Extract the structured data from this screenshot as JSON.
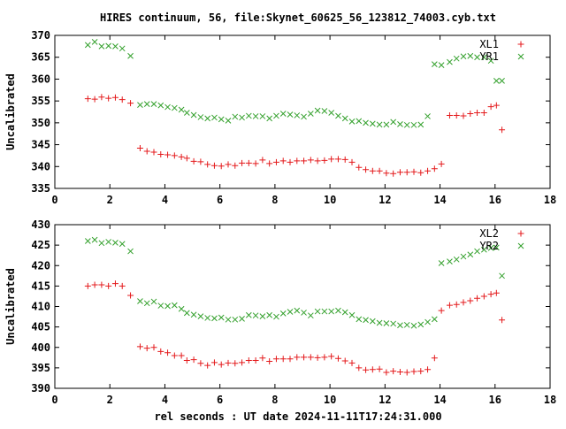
{
  "title": "HIRES continuum, 56, file:Skynet_60625_56_123812_74003.cyb.txt",
  "xlabel": "rel seconds : UT date 2024-11-11T17:24:31.000",
  "colors": {
    "red": "#e41a1c",
    "green": "#33a02c",
    "axis": "#000000"
  },
  "chart_data": [
    {
      "type": "scatter",
      "title": "",
      "xlabel": "",
      "ylabel": "Uncalibrated",
      "xlim": [
        0,
        18
      ],
      "ylim": [
        335,
        370
      ],
      "xticks": [
        "0",
        "2",
        "4",
        "6",
        "8",
        "10",
        "12",
        "14",
        "16",
        "18"
      ],
      "yticks": [
        "335",
        "340",
        "345",
        "350",
        "355",
        "360",
        "365",
        "370"
      ],
      "legend_position": "top-right",
      "series": [
        {
          "name": "XL1",
          "marker": "plus",
          "color": "#e41a1c",
          "x": [
            1.2,
            1.45,
            1.7,
            1.95,
            2.2,
            2.45,
            2.75,
            3.1,
            3.35,
            3.6,
            3.85,
            4.1,
            4.35,
            4.6,
            4.8,
            5.05,
            5.3,
            5.55,
            5.8,
            6.05,
            6.3,
            6.55,
            6.8,
            7.05,
            7.3,
            7.55,
            7.8,
            8.05,
            8.3,
            8.55,
            8.8,
            9.05,
            9.3,
            9.55,
            9.8,
            10.05,
            10.3,
            10.55,
            10.8,
            11.05,
            11.3,
            11.55,
            11.8,
            12.05,
            12.3,
            12.55,
            12.8,
            13.05,
            13.3,
            13.55,
            13.8,
            14.05,
            14.35,
            14.6,
            14.85,
            15.1,
            15.35,
            15.6,
            15.85,
            16.05,
            16.25
          ],
          "y": [
            355.5,
            355.4,
            355.9,
            355.6,
            355.8,
            355.3,
            354.5,
            344.2,
            343.5,
            343.3,
            342.8,
            342.7,
            342.5,
            342.2,
            341.9,
            341.2,
            341.1,
            340.5,
            340.2,
            340.1,
            340.5,
            340.2,
            340.8,
            340.8,
            340.7,
            341.5,
            340.7,
            341.0,
            341.3,
            341.0,
            341.3,
            341.3,
            341.5,
            341.3,
            341.4,
            341.7,
            341.7,
            341.6,
            341.0,
            339.8,
            339.3,
            339.0,
            339.0,
            338.5,
            338.4,
            338.7,
            338.7,
            338.8,
            338.6,
            339.0,
            339.5,
            340.6,
            351.7,
            351.7,
            351.6,
            352.1,
            352.3,
            352.3,
            353.7,
            354.0,
            348.4
          ]
        },
        {
          "name": "YR1",
          "marker": "cross",
          "color": "#33a02c",
          "x": [
            1.2,
            1.45,
            1.7,
            1.95,
            2.2,
            2.45,
            2.75,
            3.1,
            3.35,
            3.6,
            3.85,
            4.1,
            4.35,
            4.6,
            4.8,
            5.05,
            5.3,
            5.55,
            5.8,
            6.05,
            6.3,
            6.55,
            6.8,
            7.05,
            7.3,
            7.55,
            7.8,
            8.05,
            8.3,
            8.55,
            8.8,
            9.05,
            9.3,
            9.55,
            9.8,
            10.05,
            10.3,
            10.55,
            10.8,
            11.05,
            11.3,
            11.55,
            11.8,
            12.05,
            12.3,
            12.55,
            12.8,
            13.05,
            13.3,
            13.55,
            13.8,
            14.05,
            14.35,
            14.6,
            14.85,
            15.1,
            15.35,
            15.6,
            15.85,
            16.05,
            16.25
          ],
          "y": [
            367.8,
            368.5,
            367.5,
            367.6,
            367.5,
            367.0,
            365.3,
            354.1,
            354.3,
            354.3,
            354.0,
            353.6,
            353.4,
            353.0,
            352.3,
            351.8,
            351.3,
            351.0,
            351.2,
            350.8,
            350.5,
            351.4,
            351.2,
            351.6,
            351.5,
            351.5,
            351.0,
            351.6,
            352.1,
            351.9,
            351.7,
            351.4,
            352.1,
            352.8,
            352.7,
            352.3,
            351.6,
            351.0,
            350.3,
            350.4,
            350.0,
            349.8,
            349.6,
            349.6,
            350.2,
            349.7,
            349.5,
            349.5,
            349.6,
            351.5,
            363.4,
            363.2,
            363.9,
            364.7,
            365.2,
            365.3,
            365.0,
            365.0,
            364.2,
            359.6,
            359.6
          ]
        }
      ]
    },
    {
      "type": "scatter",
      "title": "",
      "xlabel": "rel seconds : UT date 2024-11-11T17:24:31.000",
      "ylabel": "Uncalibrated",
      "xlim": [
        0,
        18
      ],
      "ylim": [
        390,
        430
      ],
      "xticks": [
        "0",
        "2",
        "4",
        "6",
        "8",
        "10",
        "12",
        "14",
        "16",
        "18"
      ],
      "yticks": [
        "390",
        "395",
        "400",
        "405",
        "410",
        "415",
        "420",
        "425",
        "430"
      ],
      "legend_position": "top-right",
      "series": [
        {
          "name": "XL2",
          "marker": "plus",
          "color": "#e41a1c",
          "x": [
            1.2,
            1.45,
            1.7,
            1.95,
            2.2,
            2.45,
            2.75,
            3.1,
            3.35,
            3.6,
            3.85,
            4.1,
            4.35,
            4.6,
            4.8,
            5.05,
            5.3,
            5.55,
            5.8,
            6.05,
            6.3,
            6.55,
            6.8,
            7.05,
            7.3,
            7.55,
            7.8,
            8.05,
            8.3,
            8.55,
            8.8,
            9.05,
            9.3,
            9.55,
            9.8,
            10.05,
            10.3,
            10.55,
            10.8,
            11.05,
            11.3,
            11.55,
            11.8,
            12.05,
            12.3,
            12.55,
            12.8,
            13.05,
            13.3,
            13.55,
            13.8,
            14.05,
            14.35,
            14.6,
            14.85,
            15.1,
            15.35,
            15.6,
            15.85,
            16.05,
            16.25
          ],
          "y": [
            415.0,
            415.3,
            415.3,
            415.0,
            415.6,
            415.0,
            412.7,
            400.2,
            399.8,
            400.0,
            399.0,
            398.7,
            398.0,
            398.0,
            396.8,
            397.0,
            396.1,
            395.6,
            396.3,
            395.8,
            396.2,
            396.1,
            396.3,
            396.8,
            396.8,
            397.4,
            396.6,
            397.2,
            397.2,
            397.2,
            397.6,
            397.6,
            397.6,
            397.5,
            397.6,
            397.8,
            397.3,
            396.7,
            396.2,
            395.0,
            394.5,
            394.6,
            394.7,
            393.9,
            394.2,
            394.0,
            393.9,
            394.1,
            394.2,
            394.6,
            397.4,
            409.0,
            410.3,
            410.5,
            411.0,
            411.4,
            412.0,
            412.5,
            413.0,
            413.3,
            406.7
          ]
        },
        {
          "name": "YR2",
          "marker": "cross",
          "color": "#33a02c",
          "x": [
            1.2,
            1.45,
            1.7,
            1.95,
            2.2,
            2.45,
            2.75,
            3.1,
            3.35,
            3.6,
            3.85,
            4.1,
            4.35,
            4.6,
            4.8,
            5.05,
            5.3,
            5.55,
            5.8,
            6.05,
            6.3,
            6.55,
            6.8,
            7.05,
            7.3,
            7.55,
            7.8,
            8.05,
            8.3,
            8.55,
            8.8,
            9.05,
            9.3,
            9.55,
            9.8,
            10.05,
            10.3,
            10.55,
            10.8,
            11.05,
            11.3,
            11.55,
            11.8,
            12.05,
            12.3,
            12.55,
            12.8,
            13.05,
            13.3,
            13.55,
            13.8,
            14.05,
            14.35,
            14.6,
            14.85,
            15.1,
            15.35,
            15.6,
            15.85,
            16.05,
            16.25
          ],
          "y": [
            426.0,
            426.3,
            425.5,
            425.8,
            425.6,
            425.3,
            423.5,
            411.3,
            410.8,
            411.2,
            410.2,
            410.1,
            410.3,
            409.4,
            408.4,
            408.0,
            407.6,
            407.2,
            407.1,
            407.3,
            406.8,
            406.8,
            407.0,
            407.9,
            407.8,
            407.6,
            407.9,
            407.5,
            408.3,
            408.7,
            409.0,
            408.5,
            407.8,
            408.8,
            408.8,
            408.8,
            409.0,
            408.6,
            407.9,
            406.9,
            406.7,
            406.4,
            406.0,
            405.9,
            405.8,
            405.4,
            405.5,
            405.3,
            405.6,
            406.2,
            406.9,
            420.6,
            421.0,
            421.5,
            422.2,
            422.7,
            423.5,
            423.9,
            424.3,
            424.4,
            417.5
          ]
        }
      ]
    }
  ]
}
